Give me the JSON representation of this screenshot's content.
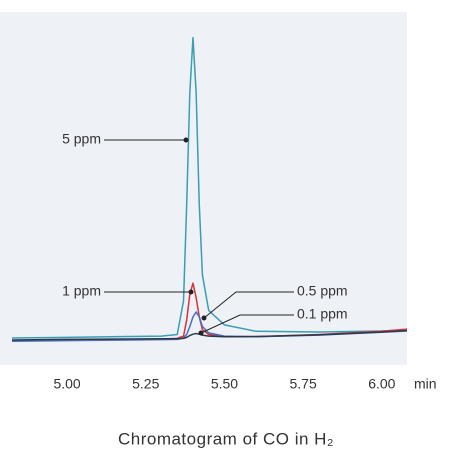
{
  "chart_data": {
    "type": "line",
    "title": "Chromatogram of CO in H₂",
    "xlabel": "min",
    "x": [
      4.825,
      5.0,
      5.2,
      5.3,
      5.35,
      5.37,
      5.38,
      5.39,
      5.4,
      5.41,
      5.42,
      5.43,
      5.45,
      5.5,
      5.6,
      5.8,
      6.0,
      6.08
    ],
    "series": [
      {
        "name": "5 ppm",
        "color": "#3a9db3",
        "values": [
          8.4,
          8.6,
          8.9,
          9.0,
          9.5,
          20,
          50,
          85,
          102,
          85,
          50,
          28,
          17,
          12.5,
          10.5,
          10.3,
          10.6,
          10.9
        ]
      },
      {
        "name": "1 ppm",
        "color": "#d6333b",
        "values": [
          7.6,
          7.8,
          8.0,
          8.1,
          8.3,
          9,
          14,
          22,
          25.5,
          21,
          15,
          11,
          9.5,
          8.8,
          8.8,
          9.5,
          10.5,
          11.2
        ]
      },
      {
        "name": "0.5 ppm",
        "color": "#4a6fc0",
        "values": [
          7.4,
          7.6,
          7.8,
          7.9,
          8.0,
          8.4,
          9.5,
          12,
          15,
          16.5,
          15,
          12,
          10,
          9.0,
          8.8,
          9.3,
          10.2,
          10.6
        ]
      },
      {
        "name": "0.1 ppm",
        "color": "#2b3a4a",
        "values": [
          7.8,
          8.0,
          8.1,
          8.2,
          8.2,
          8.3,
          8.6,
          9.2,
          9.6,
          9.8,
          9.6,
          9.3,
          9.0,
          8.8,
          8.9,
          9.4,
          10.3,
          10.7
        ]
      }
    ],
    "xlim": [
      4.825,
      6.08
    ],
    "ylim": [
      0,
      110
    ],
    "xticks": [
      {
        "value": 5.0,
        "label": "5.00"
      },
      {
        "value": 5.25,
        "label": "5.25"
      },
      {
        "value": 5.5,
        "label": "5.50"
      },
      {
        "value": 5.75,
        "label": "5.75"
      },
      {
        "value": 6.0,
        "label": "6.00"
      }
    ]
  }
}
